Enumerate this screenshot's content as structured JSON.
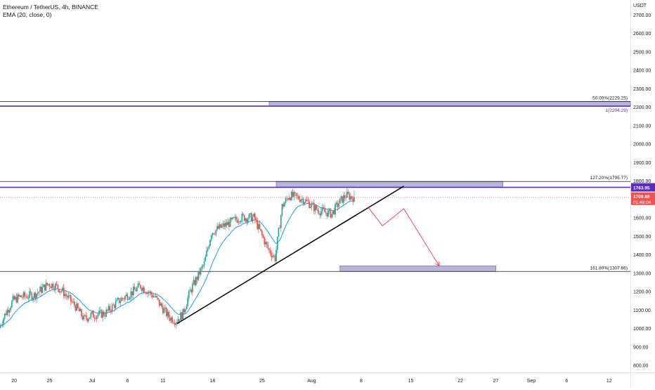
{
  "header": {
    "symbol_line": "Ethereum / TetherUS, 4h, BINANCE",
    "indicator_line": "EMA (20, close, 0)"
  },
  "colors": {
    "up": "#26a69a",
    "down": "#ef5350",
    "ema": "#2196f3",
    "purple": "#5b2bbf",
    "zone": "#b8b4dc",
    "trendline": "#000000",
    "projection": "#f23645"
  },
  "chart_data": {
    "type": "candlestick",
    "symbol": "ETHUSDT",
    "timeframe": "4h",
    "exchange": "BINANCE",
    "currency_label": "USDT",
    "y_unit": "USDT",
    "ylim": [
      760,
      2780
    ],
    "y_ticks": [
      800,
      900,
      1000,
      1100,
      1200,
      1300,
      1400,
      1500,
      1600,
      1700,
      1800,
      1900,
      2000,
      2100,
      2200,
      2300,
      2400,
      2500,
      2600,
      2700
    ],
    "y_tick_labels": [
      "800.00",
      "900.00",
      "1000.00",
      "1100.00",
      "1200.00",
      "1300.00",
      "1400.00",
      "1500.00",
      "1600.00",
      "1700.00",
      "1800.00",
      "1900.00",
      "2000.00",
      "2100.00",
      "2200.00",
      "2300.00",
      "2400.00",
      "2500.00",
      "2600.00",
      "2700.00"
    ],
    "x_axis": {
      "start": "2022-06-18",
      "end": "2022-09-15",
      "ticks": [
        {
          "date": "2022-06-20",
          "label": "20"
        },
        {
          "date": "2022-06-25",
          "label": "25"
        },
        {
          "date": "2022-07-01",
          "label": "Jul"
        },
        {
          "date": "2022-07-06",
          "label": "6"
        },
        {
          "date": "2022-07-11",
          "label": "11"
        },
        {
          "date": "2022-07-18",
          "label": "18"
        },
        {
          "date": "2022-07-25",
          "label": "25"
        },
        {
          "date": "2022-08-01",
          "label": "Aug"
        },
        {
          "date": "2022-08-08",
          "label": "8"
        },
        {
          "date": "2022-08-15",
          "label": "15"
        },
        {
          "date": "2022-08-22",
          "label": "22"
        },
        {
          "date": "2022-08-27",
          "label": "27"
        },
        {
          "date": "2022-09-01",
          "label": "Sep"
        },
        {
          "date": "2022-09-06",
          "label": "6"
        },
        {
          "date": "2022-09-12",
          "label": "12"
        }
      ]
    },
    "price_path": [
      [
        "2022-06-18",
        1000
      ],
      [
        "2022-06-19",
        1085
      ],
      [
        "2022-06-20",
        1150
      ],
      [
        "2022-06-21",
        1170
      ],
      [
        "2022-06-23",
        1180
      ],
      [
        "2022-06-24",
        1210
      ],
      [
        "2022-06-25",
        1240
      ],
      [
        "2022-06-26",
        1230
      ],
      [
        "2022-06-27",
        1200
      ],
      [
        "2022-06-29",
        1110
      ],
      [
        "2022-06-30",
        1050
      ],
      [
        "2022-07-01",
        1070
      ],
      [
        "2022-07-03",
        1080
      ],
      [
        "2022-07-05",
        1150
      ],
      [
        "2022-07-07",
        1200
      ],
      [
        "2022-07-08",
        1230
      ],
      [
        "2022-07-10",
        1170
      ],
      [
        "2022-07-12",
        1060
      ],
      [
        "2022-07-13",
        1040
      ],
      [
        "2022-07-14",
        1080
      ],
      [
        "2022-07-15",
        1200
      ],
      [
        "2022-07-17",
        1350
      ],
      [
        "2022-07-18",
        1520
      ],
      [
        "2022-07-20",
        1560
      ],
      [
        "2022-07-22",
        1600
      ],
      [
        "2022-07-24",
        1600
      ],
      [
        "2022-07-26",
        1430
      ],
      [
        "2022-07-27",
        1380
      ],
      [
        "2022-07-28",
        1660
      ],
      [
        "2022-07-29",
        1720
      ],
      [
        "2022-07-31",
        1700
      ],
      [
        "2022-08-02",
        1640
      ],
      [
        "2022-08-04",
        1620
      ],
      [
        "2022-08-05",
        1680
      ],
      [
        "2022-08-06",
        1720
      ],
      [
        "2022-08-07",
        1710
      ]
    ],
    "ema": {
      "label": "EMA (20, close, 0)",
      "period": 20
    },
    "current_price": {
      "value": 1709.88,
      "label": "1709.88",
      "countdown": "01:48:04"
    },
    "levels": [
      {
        "name": "fib-50",
        "label": "50.00%(2229.25)",
        "value": 2229.25
      },
      {
        "name": "fib-1",
        "label": "1(2204.29)",
        "value": 2204.29
      },
      {
        "name": "fib-127",
        "label": "127.20%(1795.77)",
        "value": 1795.77
      },
      {
        "name": "resistance",
        "label": "1763.95",
        "value": 1763.95
      },
      {
        "name": "fib-161",
        "label": "161.80%(1307.86)",
        "value": 1307.86
      }
    ],
    "zones": [
      {
        "name": "upper-zone",
        "start": "2022-07-26",
        "end": "2022-09-15",
        "top": 2229.25,
        "bottom": 2204.29
      },
      {
        "name": "middle-zone",
        "start": "2022-07-27",
        "end": "2022-08-28",
        "top": 1795.77,
        "bottom": 1763.95
      },
      {
        "name": "target-zone",
        "start": "2022-08-05",
        "end": "2022-08-27",
        "top": 1338,
        "bottom": 1307.86
      }
    ],
    "trendline": {
      "start": [
        "2022-07-13",
        1025
      ],
      "end": [
        "2022-08-14",
        1770
      ]
    },
    "projection": [
      [
        "2022-08-09",
        1655
      ],
      [
        "2022-08-11",
        1555
      ],
      [
        "2022-08-14",
        1648
      ],
      [
        "2022-08-19",
        1338
      ]
    ]
  }
}
